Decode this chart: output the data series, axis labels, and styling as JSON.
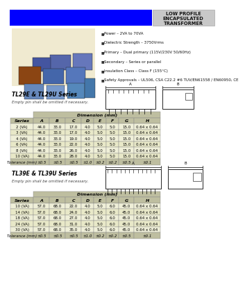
{
  "title_header": "LOW PROFILE\nENCAPSULATED\nTRANSFORMER",
  "header_bg": "#0000FF",
  "header_text_bg": "#C8C8C8",
  "bullet_points": [
    "Power – 2VA to 70VA",
    "Dielectric Strength – 3750Vrms",
    "Primary – Dual primary (115V/230V 50/60Hz)",
    "Secondary – Series or parallel",
    "Insulation Class – Class F (155°C)",
    "Safety Approvals – UL506, CSA C22.2 #6 TUV/EN61558 / EN60950, CE"
  ],
  "series1_title": "TL29E & TL29U Series",
  "series1_note": "Empty pin shall be omitted if necessary.",
  "series1_col_span": "Dimension (mm)",
  "series1_table_header": [
    "Series",
    "A",
    "B",
    "C",
    "D",
    "E",
    "F",
    "G",
    "H"
  ],
  "series1_rows": [
    [
      "2 (VA)",
      "44.0",
      "33.0",
      "17.0",
      "4.0",
      "5.0",
      "5.0",
      "15.0",
      "0.64 x 0.64"
    ],
    [
      "3 (VA)",
      "44.0",
      "33.0",
      "17.0",
      "4.0",
      "5.0",
      "5.0",
      "15.0",
      "0.64 x 0.64"
    ],
    [
      "4 (VA)",
      "44.0",
      "33.0",
      "19.0",
      "4.0",
      "5.0",
      "5.0",
      "15.0",
      "0.64 x 0.64"
    ],
    [
      "6 (VA)",
      "44.0",
      "33.0",
      "22.0",
      "4.0",
      "5.0",
      "5.0",
      "15.0",
      "0.64 x 0.64"
    ],
    [
      "8 (VA)",
      "44.0",
      "33.0",
      "26.0",
      "4.0",
      "5.0",
      "5.0",
      "15.0",
      "0.64 x 0.64"
    ],
    [
      "10 (VA)",
      "44.0",
      "33.0",
      "28.0",
      "4.0",
      "5.0",
      "5.0",
      "15.0",
      "0.64 x 0.64"
    ]
  ],
  "series1_tolerance": [
    "Tolerance (mm)",
    "±0.5",
    "±0.5",
    "±0.5",
    "±1.0",
    "±0.2",
    "±0.2",
    "±0.5",
    "±0.1"
  ],
  "series2_title": "TL39E & TL39U Series",
  "series2_note": "Empty pin shall be omitted if necessary.",
  "series2_col_span": "Dimension (mm)",
  "series2_table_header": [
    "Series",
    "A",
    "B",
    "C",
    "D",
    "E",
    "F",
    "G",
    "H"
  ],
  "series2_rows": [
    [
      "10 (VA)",
      "57.0",
      "68.0",
      "22.0",
      "4.0",
      "5.0",
      "6.0",
      "45.0",
      "0.64 x 0.64"
    ],
    [
      "14 (VA)",
      "57.0",
      "68.0",
      "24.0",
      "4.0",
      "5.0",
      "6.0",
      "45.0",
      "0.64 x 0.64"
    ],
    [
      "18 (VA)",
      "57.0",
      "68.0",
      "27.0",
      "4.0",
      "5.0",
      "6.0",
      "45.0",
      "0.64 x 0.64"
    ],
    [
      "24 (VA)",
      "57.0",
      "68.0",
      "31.0",
      "4.0",
      "5.0",
      "6.0",
      "45.0",
      "0.64 x 0.64"
    ],
    [
      "30 (VA)",
      "57.0",
      "68.0",
      "35.0",
      "4.0",
      "5.0",
      "6.0",
      "45.0",
      "0.64 x 0.64"
    ]
  ],
  "series2_tolerance": [
    "Tolerance (mm)",
    "±0.5",
    "±0.5",
    "±0.5",
    "±1.0",
    "±0.2",
    "±0.2",
    "±0.5",
    "±0.1"
  ],
  "table_header_bg": "#BEBEA0",
  "table_row_bg": "#EFEFD8",
  "table_alt_bg": "#E8E8C8",
  "page_bg": "#FFFFFF",
  "img_bg": "#F0EAD0"
}
